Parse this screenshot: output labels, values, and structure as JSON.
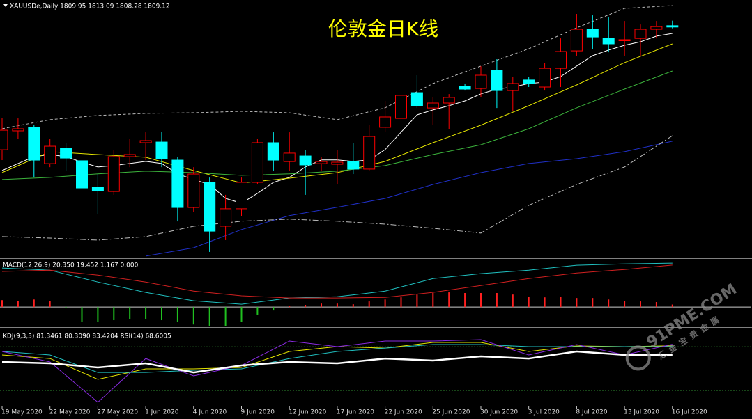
{
  "header": "XAUUSDe,Daily  1809.95 1813.09 1808.28 1809.12",
  "watermark": {
    "site": "91PME.COM",
    "slogan": "汇金宝贵金属"
  },
  "chart_data": [
    {
      "type": "candlestick",
      "title": "伦敦金日K线",
      "categories": [
        "19 May 2020",
        null,
        null,
        "22 May 2020",
        null,
        null,
        "27 May 2020",
        null,
        null,
        "1 Jun 2020",
        null,
        null,
        "4 Jun 2020",
        null,
        null,
        "9 Jun 2020",
        null,
        null,
        "12 Jun 2020",
        null,
        null,
        "17 Jun 2020",
        null,
        null,
        "22 Jun 2020",
        null,
        null,
        "25 Jun 2020",
        null,
        null,
        "30 Jun 2020",
        null,
        null,
        "3 Jul 2020",
        null,
        null,
        "8 Jul 2020",
        null,
        null,
        "13 Jul 2020",
        null,
        null,
        "16 Jul 2020"
      ],
      "open": [
        1732.4,
        1744.2,
        1746.4,
        1723.7,
        1733.3,
        1725.5,
        1709,
        1706.3,
        1728.1,
        1736.8,
        1737.2,
        1725.9,
        1696.3,
        1712,
        1684.6,
        1695.5,
        1712,
        1736.8,
        1725,
        1728.5,
        1723.7,
        1723.3,
        1725,
        1720.3,
        1746.4,
        1752,
        1768.1,
        1758.5,
        1761.6,
        1772,
        1770.7,
        1782,
        1769.4,
        1776,
        1771.6,
        1783.3,
        1794.2,
        1807.7,
        1802,
        1800.7,
        1802,
        1807.7,
        1809.95
      ],
      "high": [
        1752,
        1752,
        1747.7,
        1739,
        1736.8,
        1728.1,
        1717.2,
        1732.4,
        1739,
        1743.3,
        1743.3,
        1728.1,
        1721.5,
        1715,
        1704.2,
        1715,
        1739,
        1743.3,
        1743.3,
        1732.4,
        1728.1,
        1732.4,
        1736.8,
        1747.7,
        1762.9,
        1769.4,
        1779,
        1765.1,
        1767.2,
        1773.8,
        1784.6,
        1789,
        1778.1,
        1778.1,
        1786.8,
        1802,
        1817.3,
        1816.4,
        1815.1,
        1812.9,
        1810.7,
        1812.9,
        1813.09
      ],
      "low": [
        1725.9,
        1739,
        1715,
        1721.5,
        1719.4,
        1706.3,
        1692.4,
        1704.2,
        1721.5,
        1725.9,
        1721.5,
        1687.6,
        1693.3,
        1668.5,
        1675.9,
        1691.1,
        1710.7,
        1719.4,
        1719.4,
        1704.2,
        1719.4,
        1710.7,
        1717.2,
        1719.4,
        1743.3,
        1739,
        1758.5,
        1747.7,
        1745.5,
        1769.4,
        1765.1,
        1758.5,
        1756.4,
        1771.6,
        1769.4,
        1771.6,
        1791.2,
        1795.5,
        1793.3,
        1791.2,
        1791.2,
        1802,
        1808.28
      ],
      "close": [
        1744.6,
        1745.5,
        1725.9,
        1734.6,
        1727.2,
        1708.5,
        1706.8,
        1728.1,
        1729.4,
        1738.1,
        1726.8,
        1696.3,
        1717.2,
        1681.5,
        1695.5,
        1712,
        1736.8,
        1725.9,
        1730.3,
        1722.9,
        1725,
        1724.6,
        1720.3,
        1740.7,
        1752.9,
        1766.4,
        1759.8,
        1761.6,
        1765.1,
        1770.3,
        1779,
        1769.4,
        1773.8,
        1773.8,
        1783.3,
        1793.8,
        1807.7,
        1802.9,
        1798.6,
        1801.2,
        1807.7,
        1809.4,
        1809.12
      ],
      "up_color": "#ff0000",
      "down_color": "#00ffff",
      "ylim": [
        1665,
        1826
      ],
      "lines": [
        {
          "color": "#ffffff",
          "values": [
            1719.4,
            1723.8,
            1728.1,
            1729.4,
            1728.1,
            1724.6,
            1721.6,
            1722.5,
            1723.8,
            1725.1,
            1723.8,
            1717.3,
            1713.8,
            1710.7,
            1702,
            1699,
            1705.1,
            1712,
            1715.1,
            1721.6,
            1726,
            1726,
            1725.1,
            1726,
            1732.5,
            1743.4,
            1754.2,
            1757.3,
            1759.9,
            1762.9,
            1767.3,
            1770.3,
            1771.6,
            1773.8,
            1774.7,
            1778.2,
            1784.7,
            1791.2,
            1794.7,
            1797.7,
            1799.9,
            1803.4,
            1805.1
          ]
        },
        {
          "color": "#e6e600",
          "x": [
            0,
            3,
            6,
            9,
            12,
            15,
            18,
            21,
            24,
            27,
            30,
            33,
            36,
            39,
            42
          ],
          "values": [
            1718.1,
            1731.2,
            1729.4,
            1727.7,
            1719.4,
            1711.6,
            1714.6,
            1718.1,
            1725.1,
            1736.8,
            1747.7,
            1759.9,
            1772.9,
            1786.9,
            1798.6
          ]
        },
        {
          "color": "#3cb43c",
          "x": [
            0,
            3,
            6,
            9,
            12,
            15,
            18,
            21,
            24,
            27,
            30,
            33,
            36,
            39,
            42
          ],
          "values": [
            1713.8,
            1715.1,
            1717.3,
            1719,
            1718.1,
            1716.4,
            1717.3,
            1719,
            1722.5,
            1729.4,
            1735.5,
            1745.5,
            1758.6,
            1770.3,
            1781.6
          ]
        },
        {
          "color": "#2030c8",
          "x": [
            0,
            3,
            6,
            9,
            12,
            15,
            18,
            21,
            24,
            27,
            30,
            33,
            36,
            39,
            42
          ],
          "values": [
            null,
            null,
            null,
            1665.9,
            1671.1,
            1682.5,
            1691.2,
            1696.4,
            1702,
            1710.7,
            1718.1,
            1723.8,
            1726.8,
            1731.2,
            1737.7
          ]
        },
        {
          "color": "#bbbbbb",
          "dash": "4,3",
          "x": [
            0,
            3,
            6,
            9,
            12,
            15,
            18,
            21,
            24,
            27,
            30,
            33,
            36,
            39,
            42
          ],
          "values": [
            1745.5,
            1751.2,
            1753.8,
            1755.1,
            1755.5,
            1756.4,
            1755.5,
            1751.2,
            1758.6,
            1773.8,
            1784.7,
            1795.5,
            1808.6,
            1820.8,
            1822.5
          ]
        },
        {
          "color": "#bbbbbb",
          "dash": "8,3,2,3",
          "x": [
            0,
            3,
            6,
            9,
            12,
            15,
            18,
            21,
            24,
            27,
            30,
            33,
            36,
            39,
            42
          ],
          "values": [
            1678.1,
            1677.2,
            1675.9,
            1678.1,
            1684.6,
            1687.7,
            1689,
            1687.7,
            1685.9,
            1683.3,
            1680.3,
            1697.7,
            1710.7,
            1721.6,
            1741.2
          ]
        }
      ]
    },
    {
      "type": "macd",
      "label": "MACD(12,26,9) 20.350 19.452 1.167 0.000",
      "ylim": [
        -9,
        22
      ],
      "zero_color": "#cccccc",
      "histogram": {
        "up_color": "#ff2020",
        "down_color": "#20c020",
        "values": [
          3.2,
          2.9,
          3.5,
          2.9,
          -0.6,
          -6.8,
          -6.8,
          -6.1,
          -5.5,
          -5.5,
          -6.1,
          -6.8,
          -8.1,
          -8.7,
          -8.7,
          -6.8,
          -3.5,
          -1.6,
          0.6,
          1,
          1.6,
          1.6,
          1.3,
          2.6,
          3.5,
          4.5,
          5.8,
          6.5,
          6.8,
          6.5,
          6.5,
          6.5,
          5.8,
          4.8,
          4.5,
          4.8,
          4.2,
          4.2,
          3.5,
          2.9,
          2.6,
          2.3,
          1.167
        ]
      },
      "series": [
        {
          "color": "#20c0c0",
          "x": [
            0,
            3,
            6,
            9,
            12,
            15,
            18,
            21,
            24,
            27,
            30,
            33,
            36,
            39,
            42
          ],
          "values": [
            18.1,
            17.1,
            11.6,
            6.8,
            2.9,
            1.3,
            4.2,
            4.8,
            7.4,
            13.2,
            15.5,
            17.1,
            19.4,
            20,
            20.35
          ]
        },
        {
          "color": "#d02020",
          "x": [
            0,
            3,
            6,
            9,
            12,
            15,
            18,
            21,
            24,
            27,
            30,
            33,
            36,
            39,
            42
          ],
          "values": [
            16.5,
            17.1,
            14.8,
            11.6,
            7.4,
            5.2,
            4.2,
            4.2,
            4.5,
            6.8,
            10,
            13.2,
            15.8,
            17.4,
            19.452
          ]
        }
      ]
    },
    {
      "type": "kdj",
      "label": "KDJ(9,3,3) 81.3461 80.3090 83.4204 RSI(14) 68.6005",
      "ylim": [
        0,
        105
      ],
      "levels": [
        20,
        80
      ],
      "level_color": "#2e8b2e",
      "series": [
        {
          "color": "#e6e600",
          "x": [
            0,
            3,
            6,
            9,
            12,
            15,
            18,
            21,
            24,
            27,
            30,
            33,
            36,
            39,
            42
          ],
          "values": [
            68.7,
            63.9,
            35.3,
            49.6,
            49.6,
            51.5,
            73.5,
            80.2,
            78.2,
            85.9,
            85.9,
            73.5,
            81.1,
            80.2,
            81.3461
          ]
        },
        {
          "color": "#20c0c0",
          "x": [
            0,
            3,
            6,
            9,
            12,
            15,
            18,
            21,
            24,
            27,
            30,
            33,
            36,
            39,
            42
          ],
          "values": [
            73.5,
            68.7,
            44.8,
            44.8,
            47.7,
            49.6,
            63.9,
            73.5,
            78.2,
            83,
            83,
            80.2,
            80.2,
            80.2,
            80.309
          ]
        },
        {
          "color": "#8a2be2",
          "x": [
            0,
            3,
            6,
            9,
            12,
            15,
            18,
            21,
            24,
            27,
            30,
            33,
            36,
            39,
            42
          ],
          "values": [
            73.5,
            59.2,
            3.8,
            63.9,
            40.1,
            54.4,
            87.8,
            80.2,
            87.8,
            87.8,
            89.7,
            68.7,
            83,
            68.7,
            83.4204
          ]
        },
        {
          "color": "#ffffff",
          "width": 2.5,
          "x": [
            0,
            3,
            6,
            9,
            12,
            15,
            18,
            21,
            24,
            27,
            30,
            33,
            36,
            39,
            42
          ],
          "values": [
            59.2,
            57.3,
            51.5,
            57.3,
            44.8,
            54.4,
            59.2,
            57.3,
            63.9,
            61.1,
            66.8,
            63.9,
            73.5,
            68.7,
            68.6005
          ]
        }
      ]
    }
  ]
}
